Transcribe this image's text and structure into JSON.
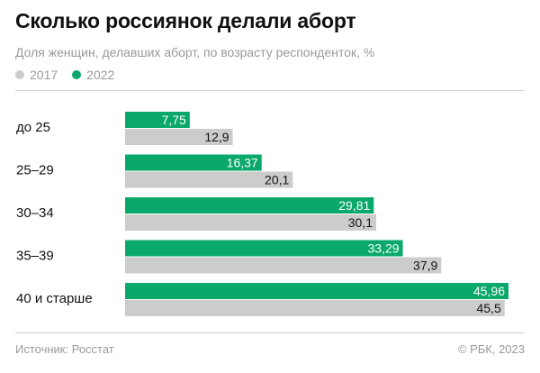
{
  "title": "Сколько россиянок делали аборт",
  "subtitle": "Доля женщин, делавших аборт, по возрасту респонденток, %",
  "footer": {
    "source": "Источник: Росстат",
    "copyright": "© РБК, 2023"
  },
  "colors": {
    "series_2022": "#0aa86a",
    "series_2017": "#cccccc",
    "text_muted": "#9a9a9a"
  },
  "chart_data": {
    "type": "bar",
    "orientation": "horizontal",
    "categories": [
      "до 25",
      "25–29",
      "30–34",
      "35–39",
      "40 и старше"
    ],
    "series": [
      {
        "name": "2017",
        "values": [
          12.9,
          20.1,
          30.1,
          37.9,
          45.5
        ],
        "labels": [
          "12,9",
          "20,1",
          "30,1",
          "37,9",
          "45,5"
        ]
      },
      {
        "name": "2022",
        "values": [
          7.75,
          16.37,
          29.81,
          33.29,
          45.96
        ],
        "labels": [
          "7,75",
          "16,37",
          "29,81",
          "33,29",
          "45,96"
        ]
      }
    ],
    "legend_position": "top-left",
    "xlim": [
      0,
      45.96
    ],
    "grid": false
  }
}
